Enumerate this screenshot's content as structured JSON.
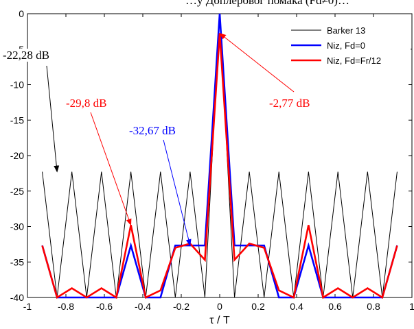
{
  "caption_fragment": "…у Доплеровог помака (Fd≠0)…",
  "chart_data": {
    "type": "line",
    "xlabel": "τ / T",
    "ylabel": "",
    "xlim": [
      -1,
      1
    ],
    "ylim": [
      -40,
      0
    ],
    "x_ticks": [
      "-1",
      "-0.8",
      "-0.6",
      "-0.4",
      "-0.2",
      "0",
      "0.2",
      "0.4",
      "0.6",
      "0.8",
      "1"
    ],
    "y_ticks": [
      "0",
      "-5",
      "-10",
      "-15",
      "-20",
      "-25",
      "-30",
      "-35",
      "-40"
    ],
    "grid": false,
    "legend_position": "top-right",
    "series": [
      {
        "name": "Barker 13",
        "color": "#000000",
        "x": [
          -0.923,
          -0.846,
          -0.769,
          -0.692,
          -0.615,
          -0.538,
          -0.462,
          -0.385,
          -0.308,
          -0.231,
          -0.154,
          -0.077,
          0,
          0.077,
          0.154,
          0.231,
          0.308,
          0.385,
          0.462,
          0.538,
          0.615,
          0.692,
          0.769,
          0.846,
          0.923
        ],
        "y": [
          -22.28,
          -40,
          -22.28,
          -40,
          -22.28,
          -40,
          -22.28,
          -40,
          -22.28,
          -40,
          -22.28,
          -40,
          0,
          -40,
          -22.28,
          -40,
          -22.28,
          -40,
          -22.28,
          -40,
          -22.28,
          -40,
          -22.28,
          -40,
          -22.28
        ]
      },
      {
        "name": "Niz, Fd=0",
        "color": "#0000ff",
        "x": [
          -0.923,
          -0.846,
          -0.769,
          -0.692,
          -0.615,
          -0.538,
          -0.462,
          -0.385,
          -0.308,
          -0.231,
          -0.154,
          -0.077,
          0,
          0.077,
          0.154,
          0.231,
          0.308,
          0.385,
          0.462,
          0.538,
          0.615,
          0.692,
          0.769,
          0.846,
          0.923
        ],
        "y": [
          -32.67,
          -40,
          -40,
          -40,
          -40,
          -40,
          -32.67,
          -40,
          -40,
          -32.67,
          -32.67,
          -32.67,
          0,
          -32.67,
          -32.67,
          -32.67,
          -40,
          -40,
          -32.67,
          -40,
          -40,
          -40,
          -40,
          -40,
          -32.67
        ]
      },
      {
        "name": "Niz, Fd=Fr/12",
        "color": "#ff0000",
        "x": [
          -0.923,
          -0.846,
          -0.769,
          -0.692,
          -0.615,
          -0.538,
          -0.462,
          -0.385,
          -0.308,
          -0.231,
          -0.154,
          -0.077,
          0,
          0.077,
          0.154,
          0.231,
          0.308,
          0.385,
          0.462,
          0.538,
          0.615,
          0.692,
          0.769,
          0.846,
          0.923
        ],
        "y": [
          -32.7,
          -40,
          -38.7,
          -40,
          -38.7,
          -40,
          -29.8,
          -40,
          -39.0,
          -33.0,
          -32.4,
          -34.7,
          -2.77,
          -34.7,
          -32.4,
          -33.0,
          -39.0,
          -40,
          -29.8,
          -40,
          -38.7,
          -40,
          -38.7,
          -40,
          -32.7
        ]
      }
    ],
    "annotations": [
      {
        "text": "-22,28 dB",
        "color": "#000000",
        "target_x": -0.846,
        "target_y": -22.28
      },
      {
        "text": "-29,8 dB",
        "color": "#ff0000",
        "target_x": -0.462,
        "target_y": -29.8
      },
      {
        "text": "-32,67 dB",
        "color": "#0000ff",
        "target_x": -0.154,
        "target_y": -32.67
      },
      {
        "text": "-2,77 dB",
        "color": "#ff0000",
        "target_x": 0.0,
        "target_y": -2.77
      }
    ]
  }
}
